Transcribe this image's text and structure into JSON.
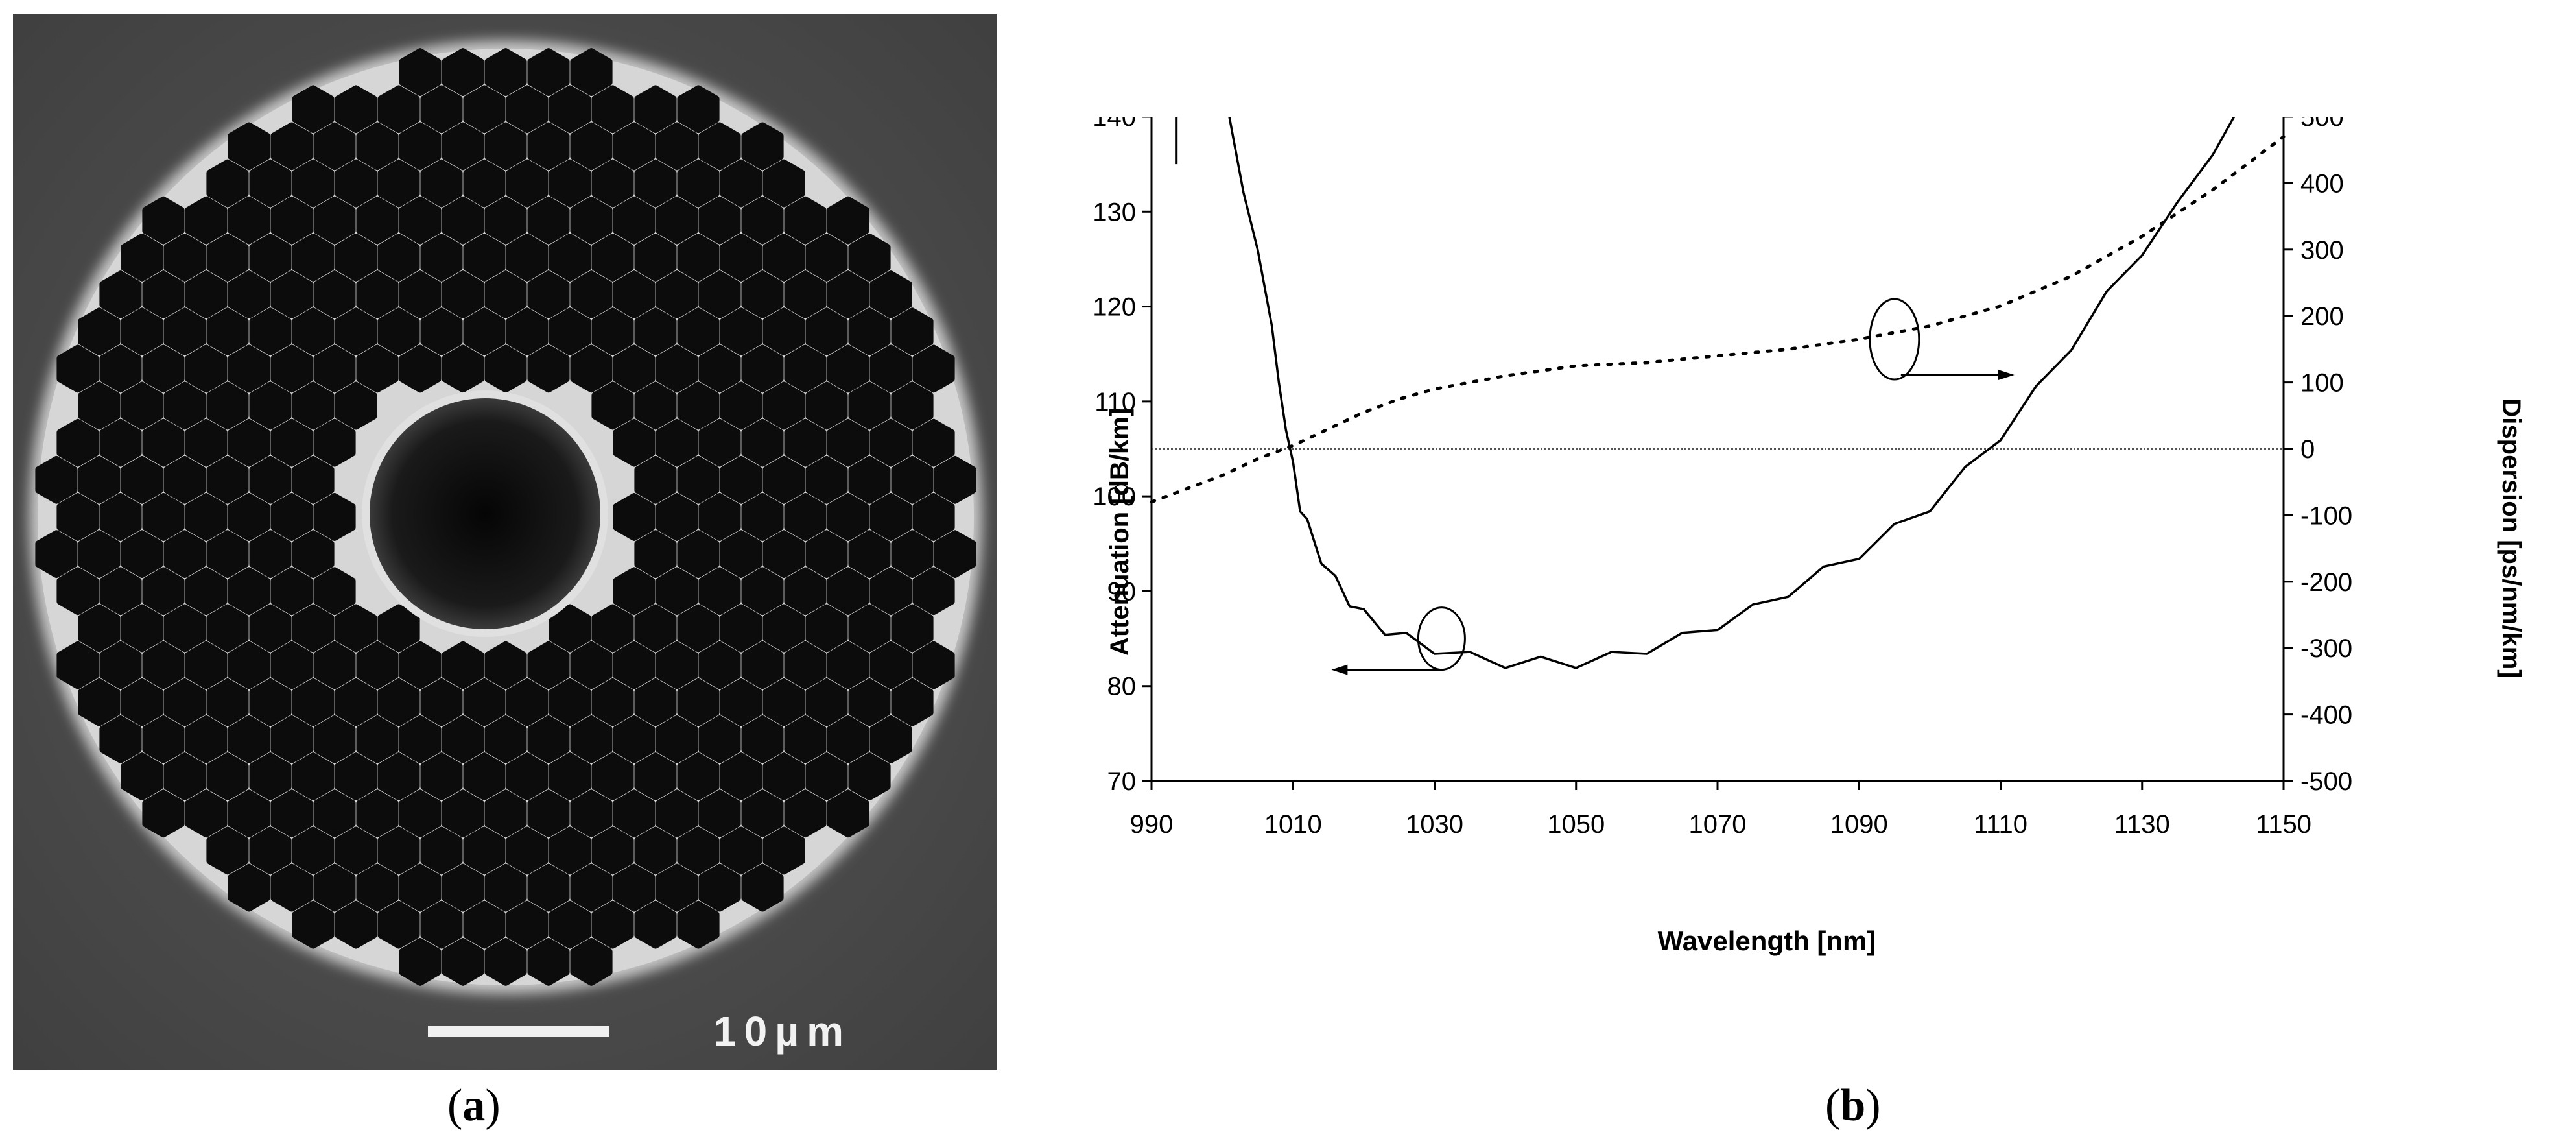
{
  "panels": {
    "a": {
      "caption_letter": "a",
      "scale_bar_label": "10µm"
    },
    "b": {
      "caption_letter": "b"
    }
  },
  "chart_data": {
    "type": "line",
    "xlabel": "Wavelength [nm]",
    "ylabel_left": "Attenuation [dB/km]",
    "ylabel_right": "Dispersion [ps/nm/km]",
    "xlim": [
      990,
      1150
    ],
    "ylim_left": [
      70,
      140
    ],
    "ylim_right": [
      -500,
      500
    ],
    "x_ticks": [
      990,
      1010,
      1030,
      1050,
      1070,
      1090,
      1110,
      1130,
      1150
    ],
    "y_left_ticks": [
      70,
      80,
      90,
      100,
      110,
      120,
      130,
      140
    ],
    "y_right_ticks": [
      -500,
      -400,
      -300,
      -200,
      -100,
      0,
      100,
      200,
      300,
      400,
      500
    ],
    "grid": false,
    "series": [
      {
        "axis": "left",
        "style": "solid",
        "x": [
          1001,
          1002,
          1003,
          1004,
          1005,
          1006,
          1007,
          1008,
          1009,
          1010,
          1011,
          1012,
          1014,
          1016,
          1018,
          1020,
          1023,
          1026,
          1030,
          1035,
          1040,
          1045,
          1050,
          1055,
          1060,
          1065,
          1070,
          1075,
          1080,
          1085,
          1090,
          1095,
          1100,
          1105,
          1110,
          1115,
          1120,
          1125,
          1130,
          1135,
          1140,
          1143
        ],
        "y": [
          140,
          136,
          132,
          129,
          126,
          122,
          118,
          112,
          107,
          103,
          99,
          97,
          93.5,
          91,
          89,
          87.5,
          86,
          85,
          84,
          83,
          82.5,
          82.5,
          82.5,
          83,
          84,
          85,
          86.5,
          88,
          90,
          92,
          94,
          96.5,
          99,
          102.5,
          106.5,
          111,
          116,
          121,
          126,
          131,
          136,
          140
        ]
      },
      {
        "axis": "right",
        "style": "dotted",
        "x": [
          990,
          995,
          1000,
          1005,
          1010,
          1015,
          1020,
          1025,
          1030,
          1040,
          1050,
          1060,
          1070,
          1080,
          1090,
          1100,
          1110,
          1120,
          1130,
          1140,
          1150
        ],
        "y": [
          -80,
          -60,
          -40,
          -15,
          5,
          30,
          55,
          75,
          90,
          110,
          125,
          130,
          140,
          150,
          165,
          185,
          215,
          260,
          320,
          390,
          470
        ]
      }
    ],
    "annotations": [
      {
        "type": "circle-arrow",
        "points_to": "left axis",
        "x": 1031,
        "y": 85
      },
      {
        "type": "circle-arrow",
        "points_to": "right axis",
        "x": 1095,
        "y": 165
      }
    ],
    "reference_line": {
      "axis": "right",
      "y": 0,
      "style": "dotted"
    }
  }
}
